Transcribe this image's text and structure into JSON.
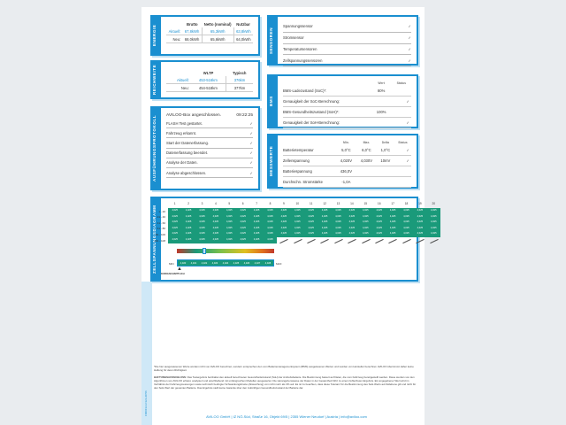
{
  "energie": {
    "label": "ENERGIE",
    "headers": [
      "Brutto",
      "Netto (nominal)",
      "Nutzbar"
    ],
    "rows": [
      {
        "label": "Aktuell:",
        "values": [
          "67,8kWh",
          "65,3kWh",
          "63,8kWh"
        ]
      },
      {
        "label": "Neu:",
        "values": [
          "68,0kWh",
          "65,6kWh",
          "64,0kWh"
        ]
      }
    ]
  },
  "reichweite": {
    "label": "REICHWEITE",
    "headers": [
      "WLTP",
      "Typisch"
    ],
    "rows": [
      {
        "label": "Aktuell:",
        "values": [
          "453-516km",
          "376km"
        ]
      },
      {
        "label": "Neu:",
        "values": [
          "454-518km",
          "377km"
        ]
      }
    ]
  },
  "protokoll": {
    "label": "AUSFÜHRUNGSPROTOKOLL",
    "title": "AVILOO-Box angeschlossen.",
    "time": "09:22:25",
    "items": [
      "FLASH Test gestartet.",
      "Fahrzeug erkannt.",
      "Start der Datenerfassung.",
      "Datenerfassung beendet.",
      "Analyse der Daten.",
      "Analyse abgeschlossen."
    ]
  },
  "sensoren": {
    "label": "SENSOREN",
    "items": [
      "Spannungssensor",
      "Stromsensor",
      "Temperatursensoren",
      "Zellspannungssensoren"
    ]
  },
  "bms": {
    "label": "BMS",
    "headers": [
      "Wert",
      "Status"
    ],
    "rows": [
      {
        "label": "BMS-Ladezustand (SoC)*:",
        "value": "80%",
        "ok": false
      },
      {
        "label": "Genauigkeit der SoC-Berechnung:",
        "value": "",
        "ok": true
      },
      {
        "label": "BMS-Gesundheitszustand (SoH)*:",
        "value": "100%",
        "ok": false
      },
      {
        "label": "Genauigkeit der SoH-Berechnung:",
        "value": "",
        "ok": true
      }
    ]
  },
  "messwerte": {
    "label": "MESSWERTE",
    "headers": [
      "Min.",
      "Max.",
      "Delta",
      "Status"
    ],
    "rows": [
      {
        "label": "Batterietemperatur",
        "values": [
          "5,0°C",
          "6,0°C",
          "1,0°C"
        ],
        "ok": true
      },
      {
        "label": "Zellenspannung",
        "values": [
          "4,020V",
          "4,030V",
          "10mV"
        ],
        "ok": true
      },
      {
        "label": "Batteriespannung",
        "values": [
          "436,0V",
          "",
          ""
        ],
        "ok": false
      },
      {
        "label": "Durchschn. Stromstärke",
        "values": [
          "-1,0A",
          "",
          ""
        ],
        "ok": false
      }
    ]
  },
  "zellen": {
    "label": "ZELLSPANNUNGSDIAGRAMM",
    "row_labels": [
      "1 - 20",
      "21 - 40",
      "41 - 60",
      "61 - 80",
      "81 - 100",
      "101 - 108"
    ],
    "cell_count": 108,
    "cell_value": "4,025",
    "scale_values": [
      "4,020",
      "4,021",
      "4,022",
      "4,023",
      "4,024",
      "4,025",
      "4,026",
      "4,027",
      "4,028"
    ],
    "min_label": "MIN",
    "max_label": "MAX",
    "avg_label": "DURCHSCHNITTLICH",
    "colors": {
      "cell": "#1a9a7a",
      "accent": "#1a8fd0"
    }
  },
  "footer": {
    "note": "*Die hier ausgewiesenen Werte wurden nicht von AVILOO berechnet, sondern entsprechen den vom Batteriemanagementsystem (BMS) ausgelesenen Werten und wurden von Hersteller berechnet. AVILOO übernimmt daher keine Haftung für deren Richtigkeit.",
    "disclaimer_title": "HAFTUNGSAUSSCHLUSS:",
    "disclaimer": "Das Testergebnis beinhaltet den aktuell berechneten Gesundheitszustand (SoH) der Antriebsbatterie. Die Bestimmung basiert auf Daten, die vom Fahrzeug bereitgestellt werden. Diese werden von den Algorithmen von AVILOO erfasst, analysiert und anschließend mit umfangreichen Modellen ausgewertet. Die Herangehensweise der Daten in der Gesamtheit führt zu einem fehlerfreien Ergebnis. Ein angegebener Wert wird im Verhältnis der Fahrzeugmessungen sowie technisch bedingter Schwankungsbreite (Abweichung) von nicht mehr als 3% auf. Es ist zu beachten, dass diese Toleranz für die Bestimmung des SoH-Werts auf Zellebene gilt und nicht für den SoH-Wert der gesamten Batterie. Das Ergebnis stellt keine Garantie über den zukünftigen Gesundheitszustand der Batterie dar.",
    "address": "AVILOO GmbH | IZ NÖ-Süd, Straße 16, Objekt 69/5 | 2355 Wiener Neudorf | Austria | info@aviloo.com",
    "doc_id": "F000F1A-C123-4C56"
  }
}
